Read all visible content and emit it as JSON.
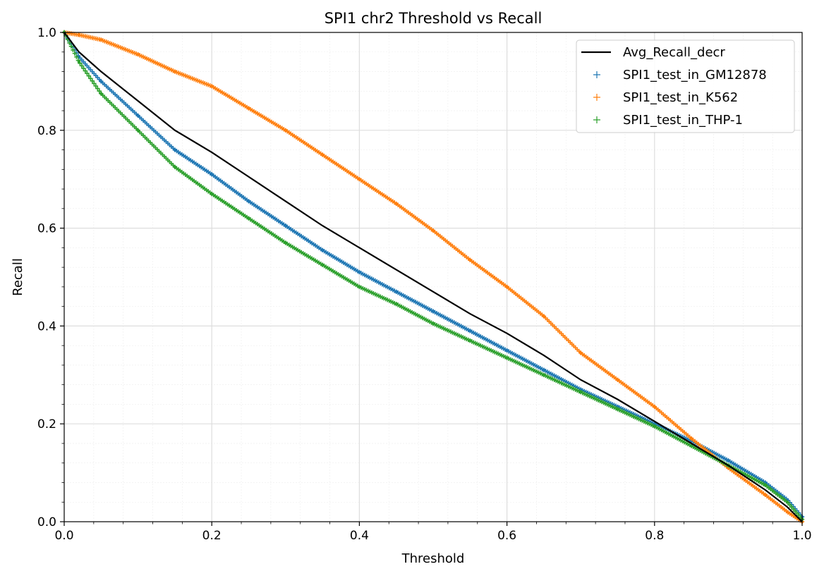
{
  "chart_data": {
    "type": "line",
    "title": "SPI1 chr2 Threshold vs Recall",
    "xlabel": "Threshold",
    "ylabel": "Recall",
    "xlim": [
      0.0,
      1.0
    ],
    "ylim": [
      0.0,
      1.0
    ],
    "xticks": [
      "0.0",
      "0.2",
      "0.4",
      "0.6",
      "0.8",
      "1.0"
    ],
    "yticks": [
      "0.0",
      "0.2",
      "0.4",
      "0.6",
      "0.8",
      "1.0"
    ],
    "grid": true,
    "minor_grid": true,
    "legend_position": "top-right",
    "series": [
      {
        "name": "Avg_Recall_decr",
        "kind": "line",
        "color": "#000000",
        "x": [
          0.0,
          0.02,
          0.05,
          0.1,
          0.15,
          0.2,
          0.25,
          0.3,
          0.35,
          0.4,
          0.45,
          0.5,
          0.55,
          0.6,
          0.65,
          0.7,
          0.75,
          0.8,
          0.85,
          0.9,
          0.95,
          0.98,
          1.0
        ],
        "y": [
          1.0,
          0.96,
          0.92,
          0.86,
          0.8,
          0.755,
          0.705,
          0.655,
          0.605,
          0.56,
          0.515,
          0.47,
          0.425,
          0.385,
          0.34,
          0.29,
          0.25,
          0.205,
          0.16,
          0.115,
          0.065,
          0.03,
          0.0
        ]
      },
      {
        "name": "SPI1_test_in_GM12878",
        "kind": "scatter",
        "color": "#1f77b4",
        "x": [
          0.0,
          0.02,
          0.05,
          0.1,
          0.15,
          0.2,
          0.25,
          0.3,
          0.35,
          0.4,
          0.45,
          0.5,
          0.55,
          0.6,
          0.65,
          0.7,
          0.75,
          0.8,
          0.85,
          0.9,
          0.95,
          0.98,
          1.0
        ],
        "y": [
          1.0,
          0.95,
          0.9,
          0.83,
          0.76,
          0.71,
          0.655,
          0.605,
          0.555,
          0.51,
          0.47,
          0.43,
          0.39,
          0.35,
          0.31,
          0.27,
          0.235,
          0.2,
          0.165,
          0.125,
          0.08,
          0.045,
          0.01
        ]
      },
      {
        "name": "SPI1_test_in_K562",
        "kind": "scatter",
        "color": "#ff7f0e",
        "x": [
          0.0,
          0.02,
          0.05,
          0.1,
          0.15,
          0.2,
          0.25,
          0.3,
          0.35,
          0.4,
          0.45,
          0.5,
          0.55,
          0.6,
          0.65,
          0.7,
          0.75,
          0.8,
          0.85,
          0.9,
          0.95,
          0.98,
          1.0
        ],
        "y": [
          1.0,
          0.995,
          0.985,
          0.955,
          0.92,
          0.89,
          0.845,
          0.8,
          0.75,
          0.7,
          0.65,
          0.595,
          0.535,
          0.48,
          0.42,
          0.345,
          0.29,
          0.235,
          0.17,
          0.11,
          0.055,
          0.02,
          0.0
        ]
      },
      {
        "name": "SPI1_test_in_THP-1",
        "kind": "scatter",
        "color": "#2ca02c",
        "x": [
          0.0,
          0.02,
          0.05,
          0.1,
          0.15,
          0.2,
          0.25,
          0.3,
          0.35,
          0.4,
          0.45,
          0.5,
          0.55,
          0.6,
          0.65,
          0.7,
          0.75,
          0.8,
          0.85,
          0.9,
          0.95,
          0.98,
          1.0
        ],
        "y": [
          1.0,
          0.94,
          0.875,
          0.8,
          0.725,
          0.67,
          0.62,
          0.57,
          0.525,
          0.48,
          0.445,
          0.405,
          0.37,
          0.335,
          0.3,
          0.265,
          0.23,
          0.195,
          0.155,
          0.115,
          0.075,
          0.04,
          0.005
        ]
      }
    ]
  }
}
